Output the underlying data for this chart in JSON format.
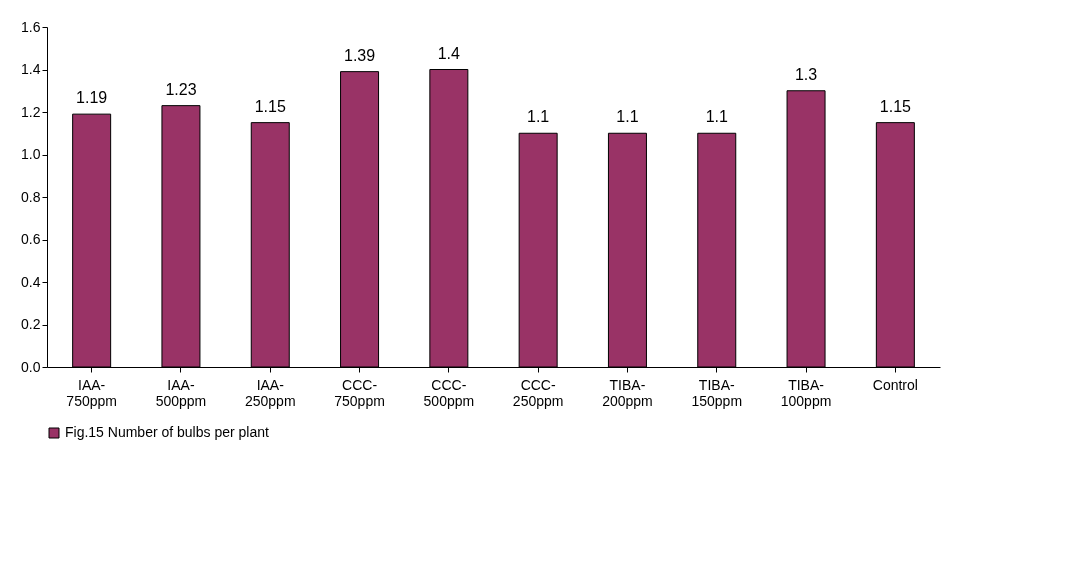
{
  "chart_data": {
    "type": "bar",
    "categories": [
      "IAA-750ppm",
      "IAA-500ppm",
      "IAA-250ppm",
      "CCC-750ppm",
      "CCC-500ppm",
      "CCC-250ppm",
      "TIBA-200ppm",
      "TIBA-150ppm",
      "TIBA-100ppm",
      "Control"
    ],
    "series": [
      {
        "name": "Fig.15 Number of bulbs per plant",
        "color": "#993366",
        "values": [
          1.19,
          1.23,
          1.15,
          1.39,
          1.4,
          1.1,
          1.1,
          1.1,
          1.3,
          1.15
        ]
      }
    ],
    "ylim": [
      0,
      1.6
    ],
    "yticks": [
      {
        "value": 0,
        "label": "0.0"
      },
      0.2,
      0.4,
      0.6,
      0.8,
      {
        "value": 1,
        "label": "1.0"
      },
      1.2,
      1.4,
      1.6
    ],
    "data_labels": true,
    "legend": "bottom",
    "grid": false
  }
}
